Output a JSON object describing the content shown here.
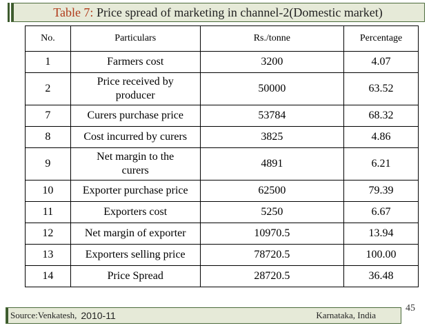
{
  "title": {
    "label": "Table 7:",
    "text": " Price spread of marketing in channel-2(Domestic market)"
  },
  "table": {
    "headers": [
      "No.",
      "Particulars",
      "Rs./tonne",
      "Percentage"
    ],
    "rows": [
      {
        "no": "1",
        "particulars": "Farmers cost",
        "rs": "3200",
        "pct": "4.07"
      },
      {
        "no": "2",
        "particulars": "Price received by producer",
        "rs": "50000",
        "pct": "63.52"
      },
      {
        "no": "7",
        "particulars": "Curers purchase price",
        "rs": "53784",
        "pct": "68.32"
      },
      {
        "no": "8",
        "particulars": "Cost incurred by curers",
        "rs": "3825",
        "pct": "4.86"
      },
      {
        "no": "9",
        "particulars": "Net margin to the curers",
        "rs": "4891",
        "pct": "6.21"
      },
      {
        "no": "10",
        "particulars": "Exporter purchase price",
        "rs": "62500",
        "pct": "79.39"
      },
      {
        "no": "11",
        "particulars": "Exporters cost",
        "rs": "5250",
        "pct": "6.67"
      },
      {
        "no": "12",
        "particulars": "Net margin of exporter",
        "rs": "10970.5",
        "pct": "13.94"
      },
      {
        "no": "13",
        "particulars": "Exporters selling price",
        "rs": "78720.5",
        "pct": "100.00"
      },
      {
        "no": "14",
        "particulars": "Price Spread",
        "rs": "28720.5",
        "pct": "36.48"
      }
    ]
  },
  "footer": {
    "source": "Source:Venkatesh,",
    "years": "2010-11",
    "place": "Karnataka, India"
  },
  "page_number": "45"
}
